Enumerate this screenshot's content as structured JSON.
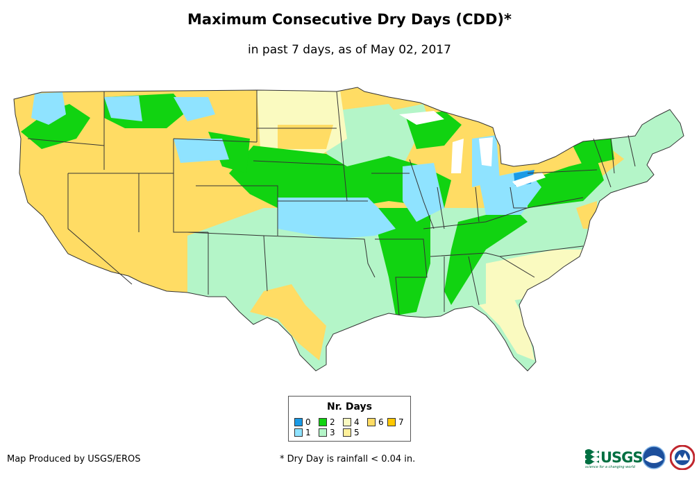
{
  "title": "Maximum Consecutive Dry Days (CDD)*",
  "subtitle": "in past 7 days, as of May 02, 2017",
  "legend": {
    "title": "Nr. Days",
    "items": [
      {
        "label": "0",
        "color": "#1a9ae6"
      },
      {
        "label": "1",
        "color": "#8fe3ff"
      },
      {
        "label": "2",
        "color": "#11d311"
      },
      {
        "label": "3",
        "color": "#b4f5c8"
      },
      {
        "label": "4",
        "color": "#fafac0"
      },
      {
        "label": "5",
        "color": "#fff09a"
      },
      {
        "label": "6",
        "color": "#ffdc64"
      },
      {
        "label": "7",
        "color": "#ffc800"
      }
    ]
  },
  "footer": {
    "credit": "Map Produced by USGS/EROS",
    "footnote": "* Dry Day is rainfall < 0.04 in."
  },
  "logos": {
    "usgs_text": "USGS",
    "usgs_tagline": "science for a changing world",
    "noaa": "noaa-logo",
    "nws": "nws-logo"
  }
}
